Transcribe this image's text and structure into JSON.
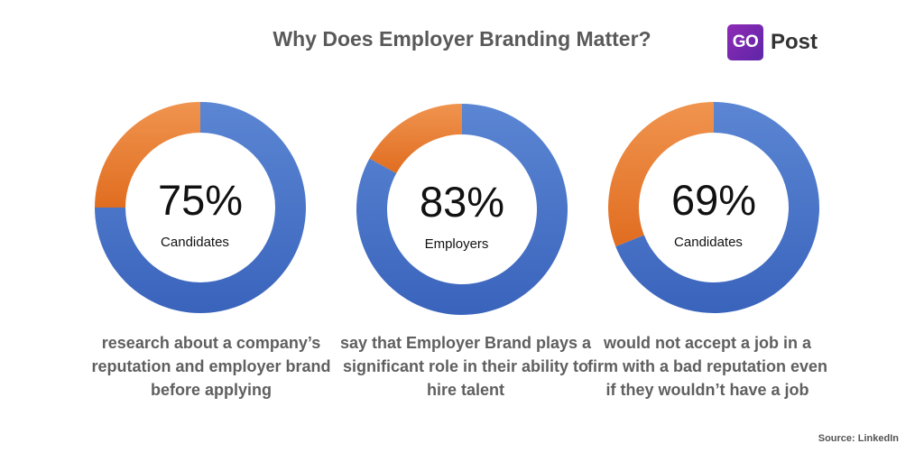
{
  "title": "Why Does Employer Branding Matter?",
  "logo": {
    "badge": "GO",
    "text": "Post"
  },
  "colors": {
    "primary": "#4472c4",
    "secondary": "#ed7d31"
  },
  "chart_data": [
    {
      "type": "pie",
      "value": 75,
      "label": "75%",
      "sublabel": "Candidates",
      "description": "research about a company’s reputation and employer brand before applying"
    },
    {
      "type": "pie",
      "value": 83,
      "label": "83%",
      "sublabel": "Employers",
      "description": "say that Employer Brand plays a significant role in their ability to hire talent"
    },
    {
      "type": "pie",
      "value": 69,
      "label": "69%",
      "sublabel": "Candidates",
      "description": "would not accept a job in a firm with a bad reputation even if they wouldn’t have a job"
    }
  ],
  "source": "Source: LinkedIn"
}
